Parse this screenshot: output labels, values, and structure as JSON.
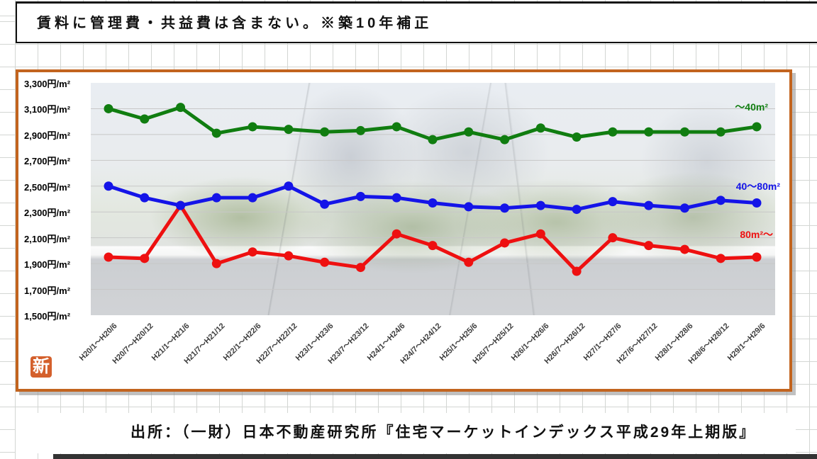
{
  "title": "賃料に管理費・共益費は含まない。※築10年補正",
  "source": "出所：（一財）日本不動産研究所『住宅マーケットインデックス平成29年上期版』",
  "stamp": "新",
  "colors": {
    "frame_border": "#c2641f",
    "stamp_bg": "#d4602c",
    "series_small": "#107d10",
    "series_mid": "#1414e8",
    "series_large": "#ee1010"
  },
  "chart_data": {
    "type": "line",
    "title": "",
    "categories": [
      "H20/1～H20/6",
      "H20/7～H20/12",
      "H21/1～H21/6",
      "H21/7～H21/12",
      "H22/1～H22/6",
      "H22/7～H22/12",
      "H23/1～H23/6",
      "H23/7～H23/12",
      "H24/1～H24/6",
      "H24/7～H24/12",
      "H25/1～H25/6",
      "H25/7～H25/12",
      "H26/1～H26/6",
      "H26/7～H26/12",
      "H27/1～H27/6",
      "H27/6～H27/12",
      "H28/1～H28/6",
      "H28/6～H28/12",
      "H29/1～H29/6"
    ],
    "series": [
      {
        "name": "～40m²",
        "color": "#107d10",
        "values": [
          3100,
          3020,
          3110,
          2910,
          2960,
          2940,
          2920,
          2930,
          2960,
          2860,
          2920,
          2860,
          2950,
          2880,
          2920,
          2920,
          2920,
          2920,
          2960
        ]
      },
      {
        "name": "40～80m²",
        "color": "#1414e8",
        "values": [
          2500,
          2410,
          2350,
          2410,
          2410,
          2500,
          2360,
          2420,
          2410,
          2370,
          2340,
          2330,
          2350,
          2320,
          2380,
          2350,
          2330,
          2390,
          2370
        ]
      },
      {
        "name": "80m²～",
        "color": "#ee1010",
        "values": [
          1950,
          1940,
          2350,
          1900,
          1990,
          1960,
          1910,
          1870,
          2130,
          2040,
          1910,
          2060,
          2130,
          1840,
          2100,
          2040,
          2010,
          1940,
          1950
        ]
      }
    ],
    "y_axis_labels": [
      "3,300円/m²",
      "3,100円/m²",
      "2,900円/m²",
      "2,700円/m²",
      "2,500円/m²",
      "2,300円/m²",
      "2,100円/m²",
      "1,900円/m²",
      "1,700円/m²",
      "1,500円/m²"
    ],
    "ylim": [
      1500,
      3300
    ],
    "ytick_step": 200,
    "grid": "horizontal",
    "legend_position": "right-inline"
  }
}
